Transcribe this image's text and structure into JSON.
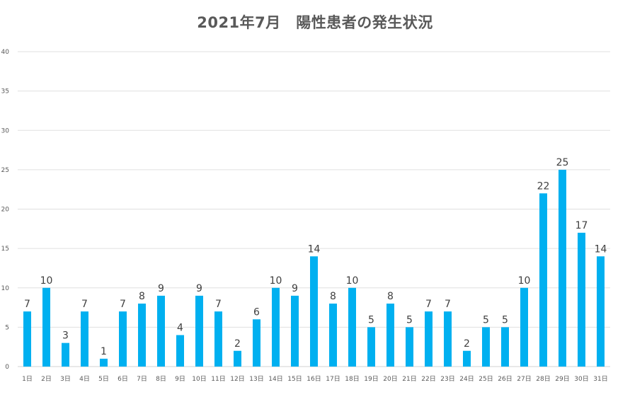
{
  "title": "2021年7月　陽性患者の発生状況",
  "chart_data": {
    "type": "bar",
    "title": "2021年7月　陽性患者の発生状況",
    "xlabel": "",
    "ylabel": "",
    "ylim": [
      0,
      40
    ],
    "ytick_step": 5,
    "grid": "horizontal",
    "legend": "none",
    "bar_color": "#00B0F0",
    "categories": [
      "1日",
      "2日",
      "3日",
      "4日",
      "5日",
      "6日",
      "7日",
      "8日",
      "9日",
      "10日",
      "11日",
      "12日",
      "13日",
      "14日",
      "15日",
      "16日",
      "17日",
      "18日",
      "19日",
      "20日",
      "21日",
      "22日",
      "23日",
      "24日",
      "25日",
      "26日",
      "27日",
      "28日",
      "29日",
      "30日",
      "31日"
    ],
    "values": [
      7,
      10,
      3,
      7,
      1,
      7,
      8,
      9,
      4,
      9,
      7,
      2,
      6,
      10,
      9,
      14,
      8,
      10,
      5,
      8,
      5,
      7,
      7,
      2,
      5,
      5,
      10,
      22,
      25,
      17,
      14
    ]
  }
}
